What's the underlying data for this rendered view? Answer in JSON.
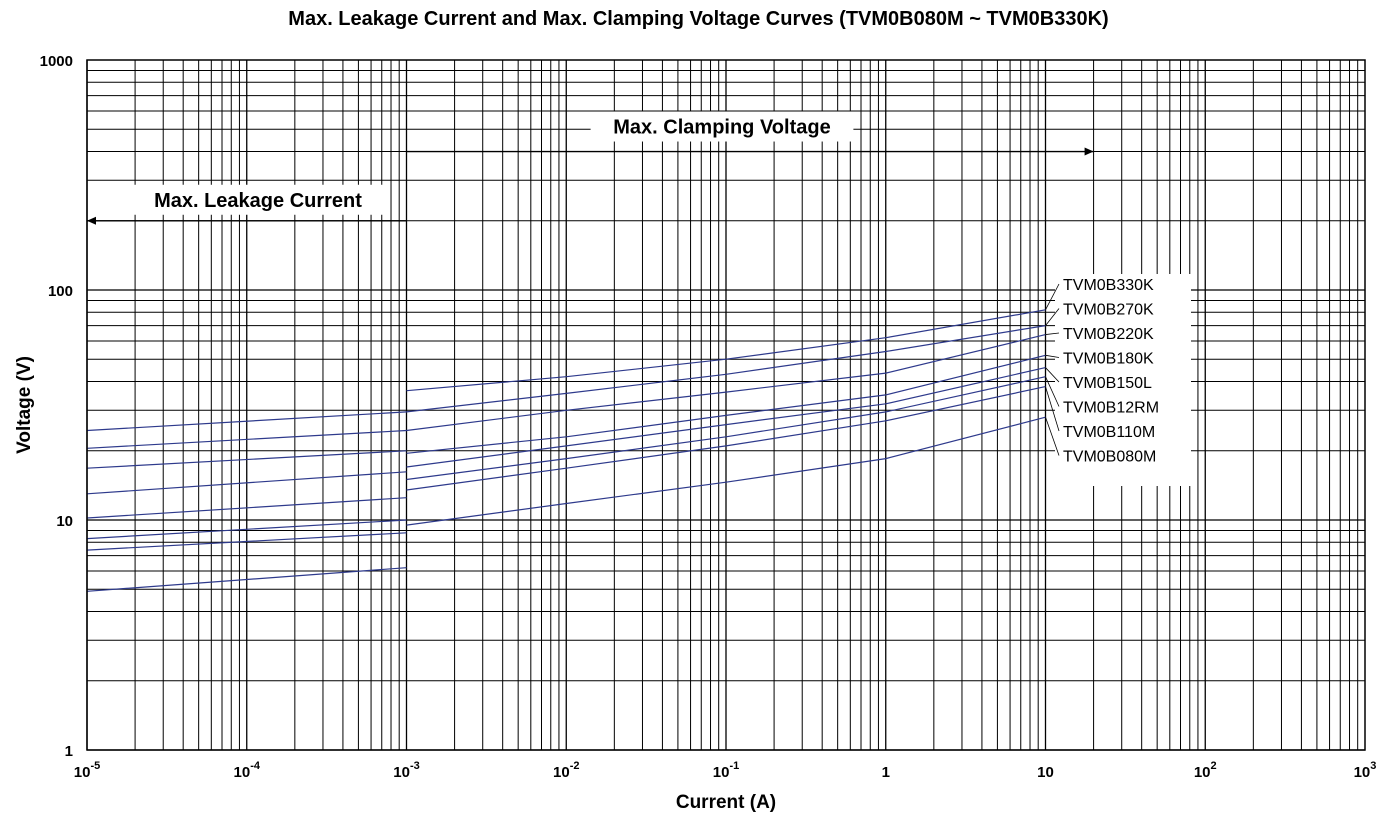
{
  "chart_data": {
    "type": "line",
    "title": "Max. Leakage Current and Max. Clamping Voltage Curves (TVM0B080M ~ TVM0B330K)",
    "xlabel": "Current (A)",
    "ylabel": "Voltage  (V)",
    "x_scale": "log",
    "y_scale": "log",
    "xlim": [
      1e-05,
      1000
    ],
    "ylim": [
      1,
      1000
    ],
    "grid": true,
    "x_ticks": [
      {
        "value": 1e-05,
        "base": "10",
        "exp": "-5"
      },
      {
        "value": 0.0001,
        "base": "10",
        "exp": "-4"
      },
      {
        "value": 0.001,
        "base": "10",
        "exp": "-3"
      },
      {
        "value": 0.01,
        "base": "10",
        "exp": "-2"
      },
      {
        "value": 0.1,
        "base": "10",
        "exp": "-1"
      },
      {
        "value": 1,
        "base": "1",
        "exp": ""
      },
      {
        "value": 10,
        "base": "10",
        "exp": ""
      },
      {
        "value": 100,
        "base": "10",
        "exp": "2"
      },
      {
        "value": 1000,
        "base": "10",
        "exp": "3"
      }
    ],
    "y_ticks": [
      {
        "value": 1,
        "label": "1"
      },
      {
        "value": 10,
        "label": "10"
      },
      {
        "value": 100,
        "label": "100"
      },
      {
        "value": 1000,
        "label": "1000"
      }
    ],
    "annotations": [
      {
        "text": "Max. Clamping Voltage",
        "arrow": "right",
        "from_x": 0.001,
        "to_x": 20,
        "y": 400
      },
      {
        "text": "Max. Leakage Current",
        "arrow": "left",
        "from_x": 0.001,
        "to_x": 1e-05,
        "y": 200
      }
    ],
    "series": [
      {
        "name": "TVM0B330K",
        "leakage": [
          [
            1e-05,
            24.5
          ],
          [
            0.001,
            29.5
          ]
        ],
        "clamping": [
          [
            0.001,
            36.5
          ],
          [
            0.01,
            42
          ],
          [
            0.1,
            50
          ],
          [
            1,
            62
          ],
          [
            10,
            82
          ]
        ]
      },
      {
        "name": "TVM0B270K",
        "leakage": [
          [
            1e-05,
            20.5
          ],
          [
            0.001,
            24.5
          ]
        ],
        "clamping": [
          [
            0.001,
            29.5
          ],
          [
            0.01,
            35.5
          ],
          [
            0.1,
            43
          ],
          [
            1,
            54
          ],
          [
            10,
            70
          ]
        ]
      },
      {
        "name": "TVM0B220K",
        "leakage": [
          [
            1e-05,
            16.8
          ],
          [
            0.001,
            20
          ]
        ],
        "clamping": [
          [
            0.001,
            24.5
          ],
          [
            0.01,
            30
          ],
          [
            0.1,
            36
          ],
          [
            1,
            43.5
          ],
          [
            10,
            64
          ]
        ]
      },
      {
        "name": "TVM0B180K",
        "leakage": [
          [
            1e-05,
            13
          ],
          [
            0.001,
            16.2
          ]
        ],
        "clamping": [
          [
            0.001,
            19.5
          ],
          [
            0.01,
            23
          ],
          [
            0.1,
            28.5
          ],
          [
            1,
            35
          ],
          [
            10,
            52
          ]
        ]
      },
      {
        "name": "TVM0B150L",
        "leakage": [
          [
            1e-05,
            10.2
          ],
          [
            0.001,
            12.5
          ]
        ],
        "clamping": [
          [
            0.001,
            17
          ],
          [
            0.01,
            21
          ],
          [
            0.1,
            26
          ],
          [
            1,
            32
          ],
          [
            10,
            46
          ]
        ]
      },
      {
        "name": "TVM0B12RM",
        "leakage": [
          [
            1e-05,
            8.3
          ],
          [
            0.001,
            10
          ]
        ],
        "clamping": [
          [
            0.001,
            15
          ],
          [
            0.01,
            18.5
          ],
          [
            0.1,
            23
          ],
          [
            1,
            29.5
          ],
          [
            10,
            42
          ]
        ]
      },
      {
        "name": "TVM0B110M",
        "leakage": [
          [
            1e-05,
            7.4
          ],
          [
            0.001,
            8.8
          ]
        ],
        "clamping": [
          [
            0.001,
            13.5
          ],
          [
            0.01,
            16.8
          ],
          [
            0.1,
            21
          ],
          [
            1,
            27
          ],
          [
            10,
            38
          ]
        ]
      },
      {
        "name": "TVM0B080M",
        "leakage": [
          [
            1e-05,
            4.9
          ],
          [
            0.001,
            6.2
          ]
        ],
        "clamping": [
          [
            0.001,
            9.5
          ],
          [
            0.01,
            11.8
          ],
          [
            0.1,
            14.6
          ],
          [
            1,
            18.5
          ],
          [
            10,
            28
          ]
        ]
      }
    ],
    "colors": {
      "curve": "#2e3a8c",
      "grid": "#000000",
      "background": "#ffffff"
    }
  }
}
